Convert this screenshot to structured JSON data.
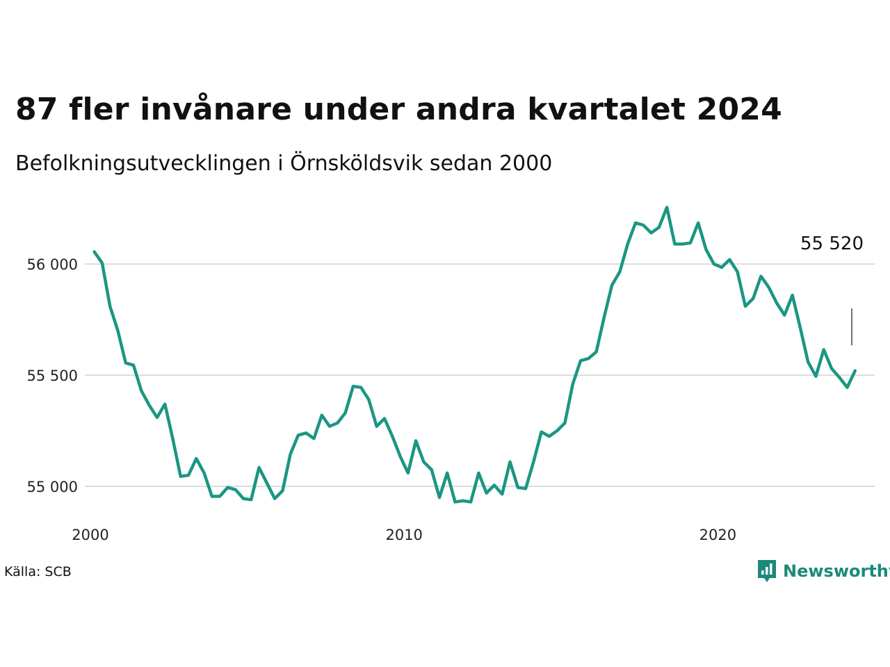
{
  "title": "87 fler invånare under andra kvartalet 2024",
  "subtitle": "Befolkningsutvecklingen i Örnsköldsvik sedan 2000",
  "source": "Källa: SCB",
  "brand": {
    "name": "Newsworthy",
    "icon": "bar-chart-speech-bubble-icon"
  },
  "colors": {
    "line": "#1b9683",
    "grid": "#dddddd",
    "brand": "#1b8a7a"
  },
  "chart_data": {
    "type": "line",
    "title": "87 fler invånare under andra kvartalet 2024",
    "subtitle": "Befolkningsutvecklingen i Örnsköldsvik sedan 2000",
    "xlabel": "",
    "ylabel": "",
    "x_start": 2000.0,
    "x_step": 0.25,
    "xlim": [
      2000.0,
      2025.0
    ],
    "ylim": [
      54880,
      56280
    ],
    "x_ticks": [
      2000,
      2010,
      2020
    ],
    "x_tick_labels": [
      "2000",
      "2010",
      "2020"
    ],
    "y_ticks": [
      55000,
      55500,
      56000
    ],
    "y_tick_labels": [
      "55 000",
      "55 500",
      "56 000"
    ],
    "grid": "horizontal",
    "end_label": "55 520",
    "series": [
      {
        "values": [
          56055,
          56005,
          55810,
          55700,
          55555,
          55545,
          55430,
          55365,
          55310,
          55370,
          55215,
          55045,
          55050,
          55125,
          55060,
          54955,
          54955,
          54995,
          54985,
          54945,
          54940,
          55085,
          55015,
          54945,
          54980,
          55145,
          55230,
          55240,
          55215,
          55320,
          55270,
          55285,
          55330,
          55450,
          55445,
          55390,
          55270,
          55305,
          55225,
          55135,
          55060,
          55205,
          55110,
          55075,
          54950,
          55060,
          54930,
          54935,
          54930,
          55060,
          54970,
          55005,
          54965,
          55110,
          54995,
          54990,
          55110,
          55245,
          55225,
          55250,
          55285,
          55460,
          55565,
          55575,
          55605,
          55760,
          55905,
          55965,
          56090,
          56185,
          56175,
          56140,
          56165,
          56255,
          56090,
          56090,
          56095,
          56185,
          56065,
          56000,
          55985,
          56020,
          55965,
          55810,
          55845,
          55945,
          55895,
          55825,
          55770,
          55860,
          55715,
          55560,
          55495,
          55615,
          55530,
          55490,
          55445,
          55520
        ]
      }
    ]
  }
}
